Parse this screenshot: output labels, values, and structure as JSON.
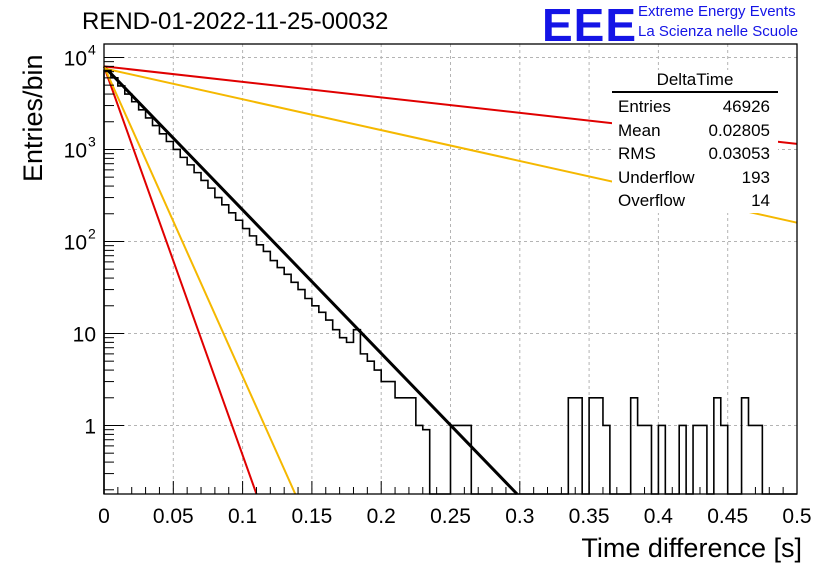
{
  "header": {
    "title": "REND-01-2022-11-25-00032",
    "logo_text": "EEE",
    "org_line1": "Extreme Energy Events",
    "org_line2": "La Scienza nelle Scuole"
  },
  "stats_box": {
    "name": "DeltaTime",
    "rows": [
      {
        "label": "Entries",
        "value": "46926"
      },
      {
        "label": "Mean",
        "value": "0.02805"
      },
      {
        "label": "RMS",
        "value": "0.03053"
      },
      {
        "label": "Underflow",
        "value": "193"
      },
      {
        "label": "Overflow",
        "value": "14"
      }
    ]
  },
  "chart_data": {
    "type": "histogram",
    "xlabel": "Time difference [s]",
    "ylabel": "Entries/bin",
    "xlim": [
      0,
      0.5
    ],
    "ylim": [
      0.18,
      14000
    ],
    "y_scale": "log",
    "grid": true,
    "x_ticks": [
      "0",
      "0.05",
      "0.1",
      "0.15",
      "0.2",
      "0.25",
      "0.3",
      "0.35",
      "0.4",
      "0.45",
      "0.5"
    ],
    "y_ticks": [
      {
        "value": 1,
        "label": "1"
      },
      {
        "value": 10,
        "label": "10"
      },
      {
        "value": 100,
        "label": "10",
        "exp": "2"
      },
      {
        "value": 1000,
        "label": "10",
        "exp": "3"
      },
      {
        "value": 10000,
        "label": "10",
        "exp": "4"
      }
    ],
    "bin_width": 0.005,
    "histogram_counts": [
      7200,
      6000,
      4900,
      4000,
      3300,
      2700,
      2200,
      1820,
      1480,
      1220,
      1000,
      820,
      680,
      560,
      460,
      380,
      300,
      250,
      205,
      170,
      138,
      115,
      92,
      78,
      62,
      52,
      44,
      36,
      30,
      24,
      20,
      17,
      14,
      11,
      9,
      8,
      11,
      6,
      5,
      4,
      3,
      3,
      2,
      2,
      2,
      1,
      0.9,
      0,
      0,
      0,
      1,
      1,
      1,
      0,
      0,
      0,
      0,
      0,
      0,
      0,
      0,
      0,
      0,
      0,
      0,
      0,
      0,
      2,
      2,
      0,
      2,
      2,
      1,
      0,
      0,
      0,
      2,
      1,
      1,
      0,
      1,
      0,
      0,
      1,
      0,
      1,
      1,
      0,
      2,
      1,
      0,
      0,
      2,
      1,
      1,
      0,
      0,
      0,
      0,
      0
    ],
    "fit_lines": [
      {
        "color": "#000000",
        "y_at_0": 8000,
        "y_at_end": 0.18,
        "x_end": 0.298
      },
      {
        "color": "#e00000",
        "y_at_0": 8000,
        "y_at_end": 1150,
        "x_end": 0.5
      },
      {
        "color": "#f5b800",
        "y_at_0": 7600,
        "y_at_end": 160,
        "x_end": 0.5
      },
      {
        "color": "#e00000",
        "y_at_0": 8000,
        "y_at_end": 0.18,
        "x_end": 0.11
      },
      {
        "color": "#f5b800",
        "y_at_0": 8000,
        "y_at_end": 0.18,
        "x_end": 0.138
      }
    ]
  }
}
